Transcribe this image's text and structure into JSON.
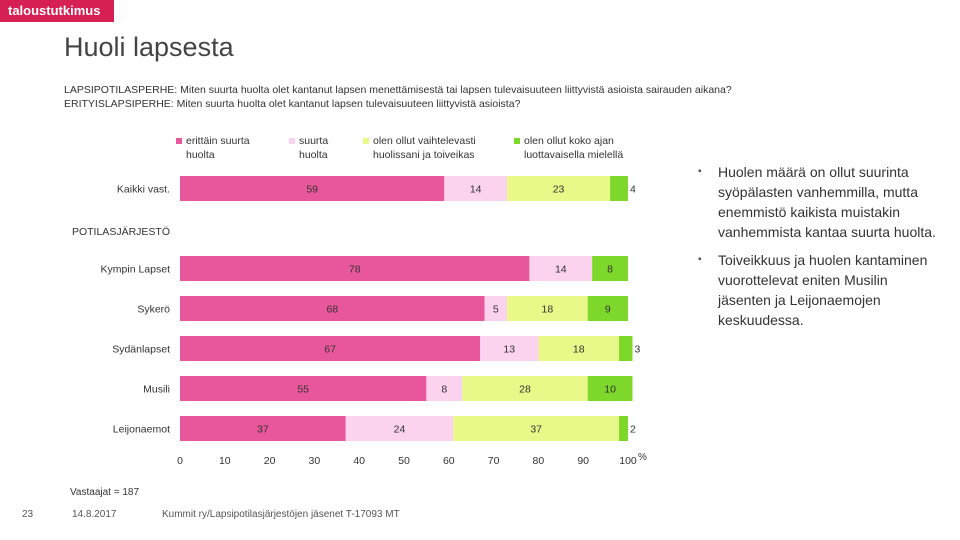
{
  "brand": {
    "name": "taloustutkimus",
    "color": "#d61f53"
  },
  "page": {
    "title": "Huoli lapsesta",
    "question_line1": "LAPSIPOTILASPERHE: Miten suurta huolta olet kantanut lapsen menettämisestä tai lapsen tulevaisuuteen liittyvistä asioista sairauden aikana?",
    "question_line2": "ERITYISLAPSIPERHE: Miten suurta huolta olet kantanut lapsen tulevaisuuteen liittyvistä asioista?",
    "respondents": "Vastaajat = 187",
    "slide_number": "23",
    "date": "14.8.2017",
    "source": "Kummit ry/Lapsipotilasjärjestöjen jäsenet T-17093 MT"
  },
  "bullets": [
    "Huolen määrä on ollut suurinta syöpälasten vanhemmilla, mutta enemmistö kaikista muistakin vanhemmista kantaa suurta huolta.",
    "Toiveikkuus ja huolen kantaminen vuorottelevat eniten Musilin jäsenten ja Leijonaemojen keskuudessa."
  ],
  "chart_data": {
    "type": "bar",
    "orientation": "horizontal",
    "stacked": true,
    "xlim": [
      0,
      100
    ],
    "xticks": [
      0,
      10,
      20,
      30,
      40,
      50,
      60,
      70,
      80,
      90,
      100
    ],
    "xunit": "%",
    "section_label": "POTILASJÄRJESTÖ",
    "categories": [
      "Kaikki vast.",
      "Kympin Lapset",
      "Sykerö",
      "Sydänlapset",
      "Musili",
      "Leijonaemot"
    ],
    "series": [
      {
        "name": "erittäin suurta huolta",
        "legend_line1": "erittäin suurta",
        "legend_line2": "huolta",
        "color": "#e8579b",
        "values": [
          59,
          78,
          68,
          67,
          55,
          37
        ]
      },
      {
        "name": "suurta huolta",
        "legend_line1": "suurta",
        "legend_line2": "huolta",
        "color": "#fbd3ef",
        "values": [
          14,
          14,
          5,
          13,
          8,
          24
        ]
      },
      {
        "name": "olen ollut vaihtelevasti huolissani ja toiveikas",
        "legend_line1": "olen ollut vaihtelevasti",
        "legend_line2": "huolissani ja toiveikas",
        "color": "#e8f98a",
        "values": [
          23,
          null,
          18,
          18,
          28,
          37
        ]
      },
      {
        "name": "olen ollut koko ajan luottavaisella mielellä",
        "legend_line1": "olen ollut koko ajan",
        "legend_line2": "luottavaisella mielellä",
        "color": "#7ed82b",
        "values": [
          4,
          8,
          9,
          3,
          10,
          2
        ]
      }
    ]
  }
}
